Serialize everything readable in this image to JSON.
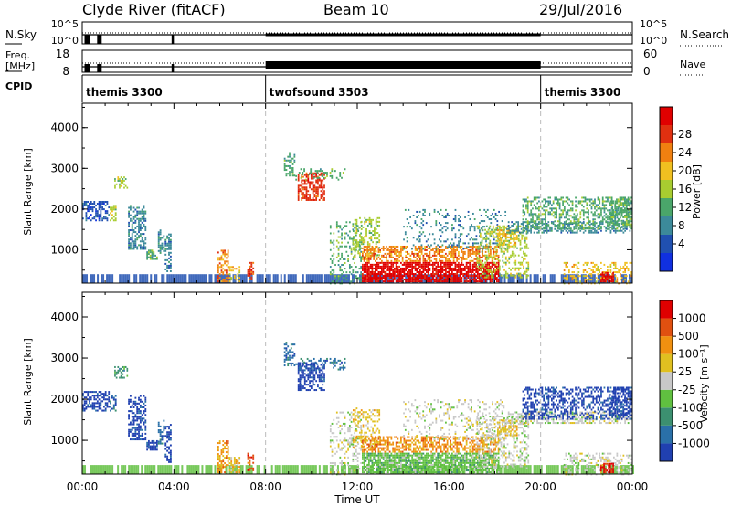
{
  "header": {
    "station": "Clyde River (fitACF)",
    "beam": "Beam 10",
    "date": "29/Jul/2016"
  },
  "status_panel": {
    "left_labels": {
      "nsky": "N.Sky",
      "freq_line1": "Freq.",
      "freq_line2": "[MHz]",
      "cpid": "CPID"
    },
    "right_labels": {
      "nsearch": "N.Search",
      "nave": "Nave"
    },
    "nsky_ticks": [
      "10^5",
      "10^0"
    ],
    "nsearch_ticks": [
      "10^5",
      "10^0"
    ],
    "freq_ticks": [
      "18",
      "8"
    ],
    "nave_ticks": [
      "60",
      "0"
    ],
    "cpid_segments": [
      {
        "label": "themis 3300",
        "start_hour": 0,
        "end_hour": 8
      },
      {
        "label": "twofsound 3503",
        "start_hour": 8,
        "end_hour": 20
      },
      {
        "label": "themis 3300",
        "start_hour": 20,
        "end_hour": 24
      }
    ]
  },
  "chart_data": [
    {
      "type": "heatmap",
      "ylabel": "Slant Range [km]",
      "colorbar_label": "Power [dB]",
      "colorbar_ticks": [
        "28",
        "24",
        "20",
        "16",
        "12",
        "8",
        "4"
      ],
      "colors": [
        "#1030e0",
        "#2050b0",
        "#3c8a9a",
        "#4aa66a",
        "#a8cc30",
        "#f0c020",
        "#f08010",
        "#e03010",
        "#e00000"
      ],
      "xlim": [
        0,
        24
      ],
      "ylim": [
        180,
        4600
      ],
      "yticks": [
        "4000",
        "3000",
        "2000",
        "1000"
      ],
      "xticks": [
        "00:00",
        "04:00",
        "08:00",
        "12:00",
        "16:00",
        "20:00",
        "00:00"
      ]
    },
    {
      "type": "heatmap",
      "ylabel": "Slant Range [km]",
      "colorbar_label": "Velocity [m s⁻¹]",
      "colorbar_ticks": [
        "1000",
        "500",
        "100",
        "25",
        "-25",
        "-100",
        "-500",
        "-1000"
      ],
      "colors": [
        "#2040b0",
        "#2a70a8",
        "#3c9070",
        "#60c040",
        "#c8c8c8",
        "#e0c020",
        "#f09010",
        "#e05010",
        "#e00000"
      ],
      "xlim": [
        0,
        24
      ],
      "ylim": [
        180,
        4600
      ],
      "yticks": [
        "4000",
        "3000",
        "2000",
        "1000"
      ],
      "xticks": [
        "00:00",
        "04:00",
        "08:00",
        "12:00",
        "16:00",
        "20:00",
        "00:00"
      ],
      "xlabel": "Time UT"
    }
  ]
}
